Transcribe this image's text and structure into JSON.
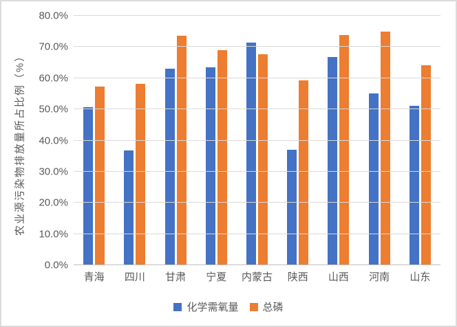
{
  "chart_data": {
    "type": "bar",
    "title": "",
    "xlabel": "",
    "ylabel": "农业源污染物排放量所占比例（%）",
    "categories": [
      "青海",
      "四川",
      "甘肃",
      "宁夏",
      "内蒙古",
      "陕西",
      "山西",
      "河南",
      "山东"
    ],
    "series": [
      {
        "name": "化学需氧量",
        "color": "#4472C4",
        "values": [
          50.6,
          36.8,
          63.1,
          63.5,
          71.4,
          37.0,
          66.8,
          55.1,
          51.2
        ]
      },
      {
        "name": "总磷",
        "color": "#ED7D31",
        "values": [
          57.2,
          58.2,
          73.6,
          68.9,
          67.7,
          59.2,
          73.8,
          74.9,
          64.2
        ]
      }
    ],
    "ylim": [
      0,
      80
    ],
    "y_ticks": [
      "0.0%",
      "10.0%",
      "20.0%",
      "30.0%",
      "40.0%",
      "50.0%",
      "60.0%",
      "70.0%",
      "80.0%"
    ],
    "grid": true,
    "legend_position": "bottom",
    "colors": {
      "gridline": "#D9D9D9",
      "axis_line": "#BFBFBF",
      "text": "#595959",
      "figure_border": "#DCDCDC",
      "background": "#FFFFFF"
    }
  }
}
